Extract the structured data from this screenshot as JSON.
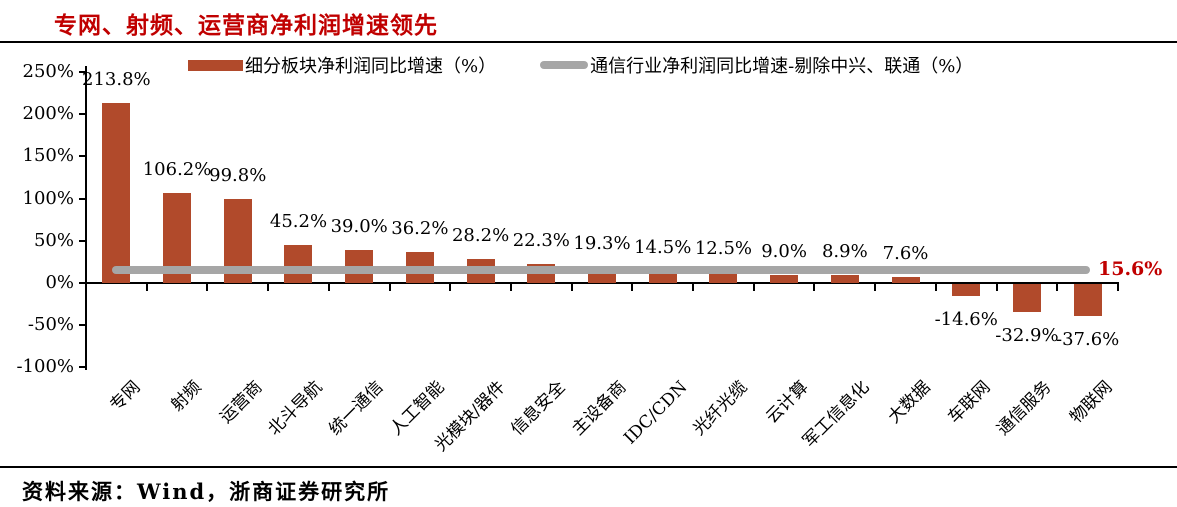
{
  "title": "专网、射频、运营商净利润增速领先",
  "colors": {
    "bar": "#B14A2B",
    "line": "#A6A6A6",
    "accent_red": "#C00000",
    "axis": "#000000"
  },
  "legend": {
    "bar_series_label": "细分板块净利润同比增速（%）",
    "line_series_label": "通信行业净利润同比增速-剔除中兴、联通（%）"
  },
  "chart_data": {
    "type": "bar",
    "title": "专网、射频、运营商净利润增速领先",
    "categories": [
      "专网",
      "射频",
      "运营商",
      "北斗导航",
      "统一通信",
      "人工智能",
      "光模块/器件",
      "信息安全",
      "主设备商",
      "IDC/CDN",
      "光纤光缆",
      "云计算",
      "军工信息化",
      "大数据",
      "车联网",
      "通信服务",
      "物联网"
    ],
    "series": [
      {
        "name": "细分板块净利润同比增速（%）",
        "type": "bar",
        "values": [
          213.8,
          106.2,
          99.8,
          45.2,
          39.0,
          36.2,
          28.2,
          22.3,
          19.3,
          14.5,
          12.5,
          9.0,
          8.9,
          7.6,
          -14.6,
          -32.9,
          -37.6
        ],
        "value_labels": [
          "213.8%",
          "106.2%",
          "99.8%",
          "45.2%",
          "39.0%",
          "36.2%",
          "28.2%",
          "22.3%",
          "19.3%",
          "14.5%",
          "12.5%",
          "9.0%",
          "8.9%",
          "7.6%",
          "-14.6%",
          "-32.9%",
          "-37.6%"
        ]
      },
      {
        "name": "通信行业净利润同比增速-剔除中兴、联通（%）",
        "type": "line",
        "value": 15.6,
        "label": "15.6%"
      }
    ],
    "ylim": [
      -100,
      250
    ],
    "yticks": [
      {
        "label": "250%",
        "value": 250
      },
      {
        "label": "200%",
        "value": 200
      },
      {
        "label": "150%",
        "value": 150
      },
      {
        "label": "100%",
        "value": 100
      },
      {
        "label": "50%",
        "value": 50
      },
      {
        "label": "0%",
        "value": 0
      },
      {
        "label": "-50%",
        "value": -50
      },
      {
        "label": "-100%",
        "value": -100
      }
    ],
    "grid": false,
    "legend_position": "top"
  },
  "footer": {
    "source": "资料来源：Wind，浙商证券研究所"
  }
}
